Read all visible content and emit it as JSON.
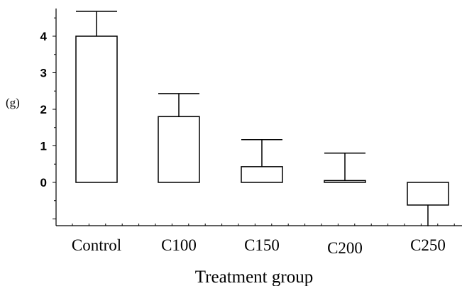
{
  "chart_data": {
    "type": "bar",
    "title": "",
    "xlabel": "Treatment group",
    "ylabel": "(g)",
    "categories": [
      "Control",
      "C100",
      "C150",
      "C200",
      "C250"
    ],
    "series": [
      {
        "values": [
          4.0,
          1.8,
          0.43,
          0.05,
          -0.62
        ],
        "error_upper": [
          4.68,
          2.43,
          1.17,
          0.8,
          -1.2
        ]
      }
    ],
    "ylim": [
      -1.2,
      4.8
    ],
    "yticks": [
      0,
      1,
      2,
      3,
      4
    ],
    "grid": false,
    "legend": "none",
    "colors": {
      "bar_fill": "#ffffff",
      "stroke": "#000000"
    }
  }
}
